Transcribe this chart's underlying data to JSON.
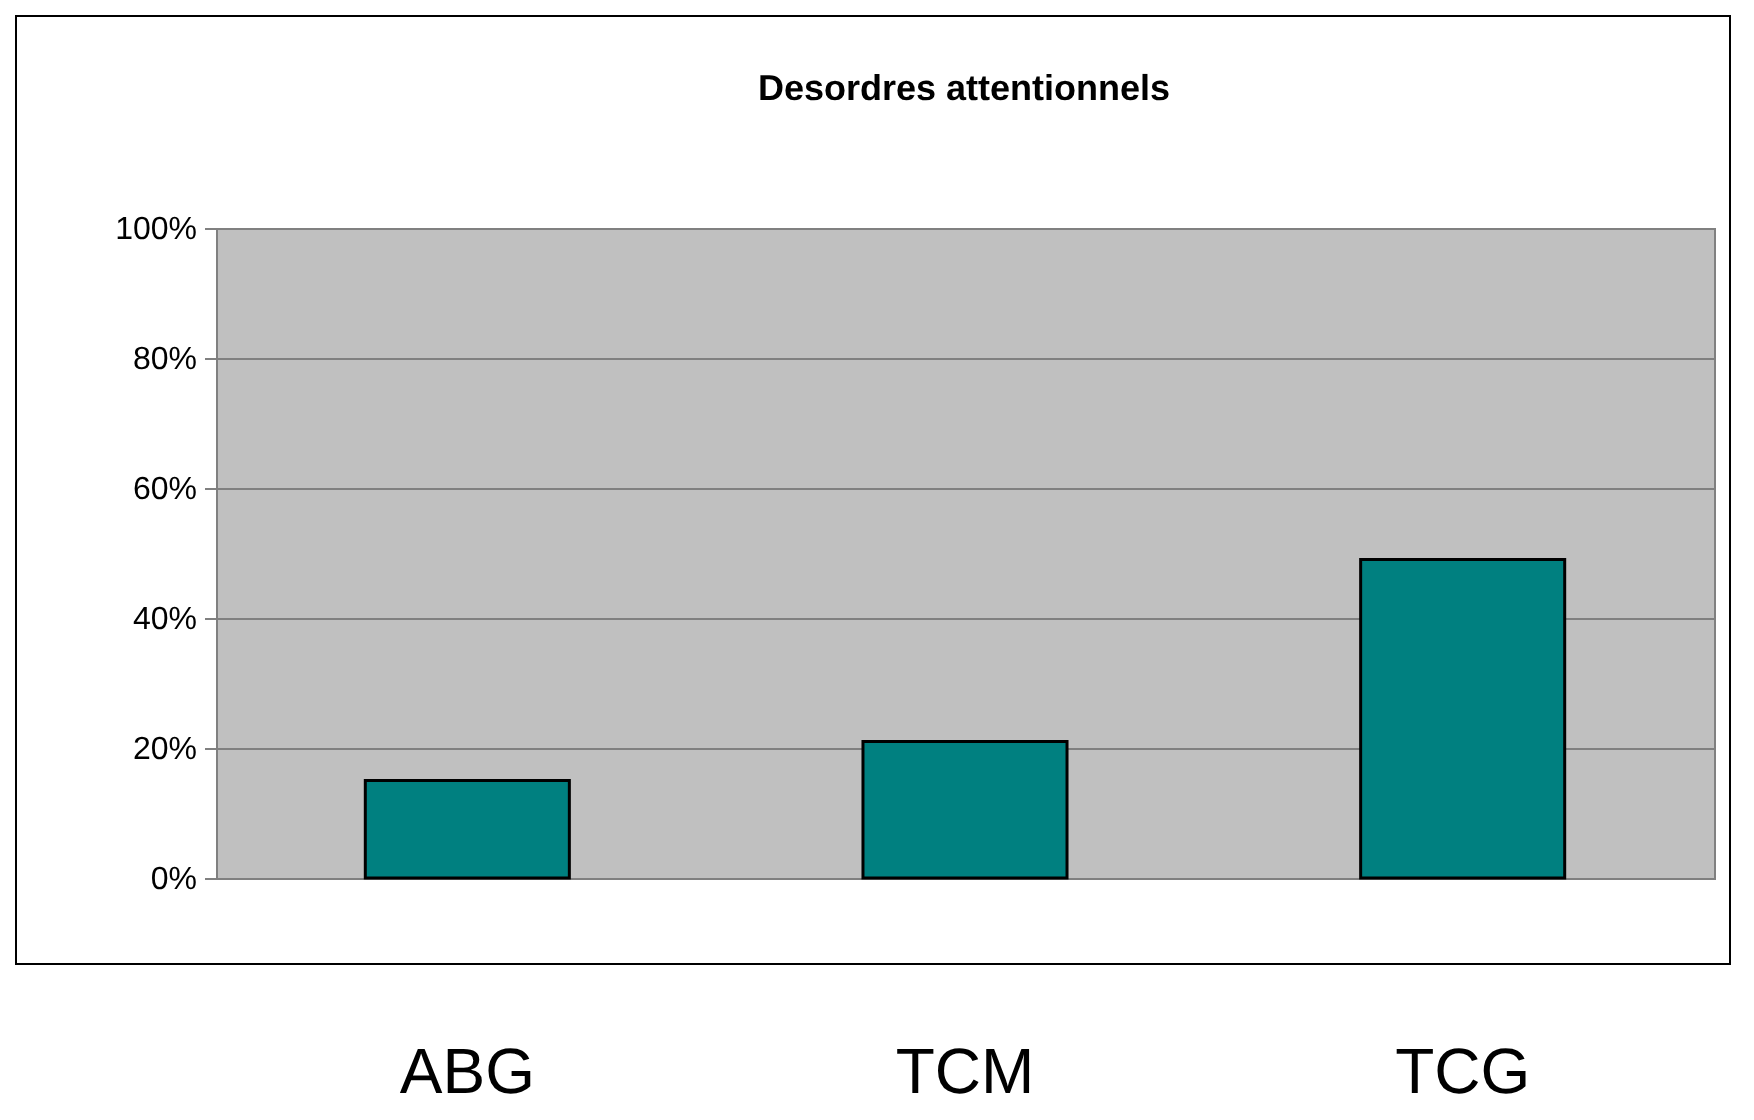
{
  "chart_data": {
    "type": "bar",
    "title": "Desordres attentionnels",
    "categories": [
      "ABG",
      "TCM",
      "TCG"
    ],
    "values": [
      15,
      21,
      49
    ],
    "color": "#008080",
    "ylim": [
      0,
      100
    ],
    "yticks": [
      {
        "value": 0,
        "label": "0%"
      },
      {
        "value": 20,
        "label": "20%"
      },
      {
        "value": 40,
        "label": "40%"
      },
      {
        "value": 60,
        "label": "60%"
      },
      {
        "value": 80,
        "label": "80%"
      },
      {
        "value": 100,
        "label": "100%"
      }
    ],
    "grid": "y"
  }
}
